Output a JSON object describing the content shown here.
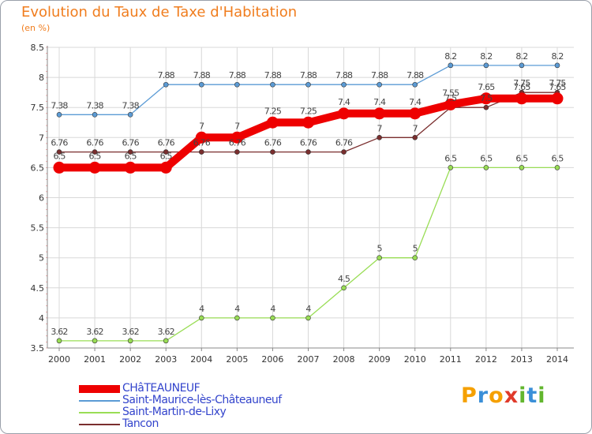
{
  "title": "Evolution du Taux de Taxe d'Habitation",
  "subtitle": "(en %)",
  "logo": {
    "letters": [
      "P",
      "r",
      "o",
      "x",
      "i",
      "t",
      "i"
    ],
    "colors": [
      "#f5a000",
      "#3a8fd8",
      "#f5a000",
      "#e03a2a",
      "#62b62e",
      "#3a8fd8",
      "#62b62e"
    ]
  },
  "chart_data": {
    "type": "line",
    "title": "Evolution du Taux de Taxe d'Habitation",
    "ylabel": "(en %)",
    "x": [
      "2000",
      "2001",
      "2002",
      "2003",
      "2004",
      "2005",
      "2006",
      "2007",
      "2008",
      "2009",
      "2010",
      "2011",
      "2012",
      "2013",
      "2014"
    ],
    "ylim": [
      3.5,
      8.5
    ],
    "yticks": [
      "3.5",
      "4",
      "4.5",
      "5",
      "5.5",
      "6",
      "6.5",
      "7",
      "7.5",
      "8",
      "8.5"
    ],
    "grid": true,
    "series": [
      {
        "name": "CHâTEAUNEUF",
        "color": "#ee0000",
        "values": [
          6.5,
          6.5,
          6.5,
          6.5,
          7,
          7,
          7.25,
          7.25,
          7.4,
          7.4,
          7.4,
          7.55,
          7.65,
          7.65,
          7.65
        ],
        "labels": [
          "6.5",
          "6.5",
          "6.5",
          "6.5",
          "7",
          "7",
          "7.25",
          "7.25",
          "7.4",
          "7.4",
          "7.4",
          "7.55",
          "7.65",
          "7.65",
          "7.65"
        ]
      },
      {
        "name": "Saint-Maurice-lès-Châteauneuf",
        "color": "#5b9bd5",
        "values": [
          7.38,
          7.38,
          7.38,
          7.88,
          7.88,
          7.88,
          7.88,
          7.88,
          7.88,
          7.88,
          7.88,
          8.2,
          8.2,
          8.2,
          8.2
        ],
        "labels": [
          "7.38",
          "7.38",
          "7.38",
          "7.88",
          "7.88",
          "7.88",
          "7.88",
          "7.88",
          "7.88",
          "7.88",
          "7.88",
          "8.2",
          "8.2",
          "8.2",
          "8.2"
        ]
      },
      {
        "name": "Saint-Martin-de-Lixy",
        "color": "#99dd55",
        "values": [
          3.62,
          3.62,
          3.62,
          3.62,
          4,
          4,
          4,
          4,
          4.5,
          5,
          5,
          6.5,
          6.5,
          6.5,
          6.5
        ],
        "labels": [
          "3.62",
          "3.62",
          "3.62",
          "3.62",
          "4",
          "4",
          "4",
          "4",
          "4.5",
          "5",
          "5",
          "6.5",
          "6.5",
          "6.5",
          "6.5"
        ]
      },
      {
        "name": "Tancon",
        "color": "#7a2e2e",
        "values": [
          6.76,
          6.76,
          6.76,
          6.76,
          6.76,
          6.76,
          6.76,
          6.76,
          6.76,
          7,
          7,
          7.5,
          7.5,
          7.75,
          7.75
        ],
        "labels": [
          "6.76",
          "6.76",
          "6.76",
          "6.76",
          "6.76",
          "6.76",
          "6.76",
          "6.76",
          "6.76",
          "7",
          "7",
          "7.5",
          "7.5",
          "7.75",
          "7.75"
        ]
      }
    ]
  }
}
